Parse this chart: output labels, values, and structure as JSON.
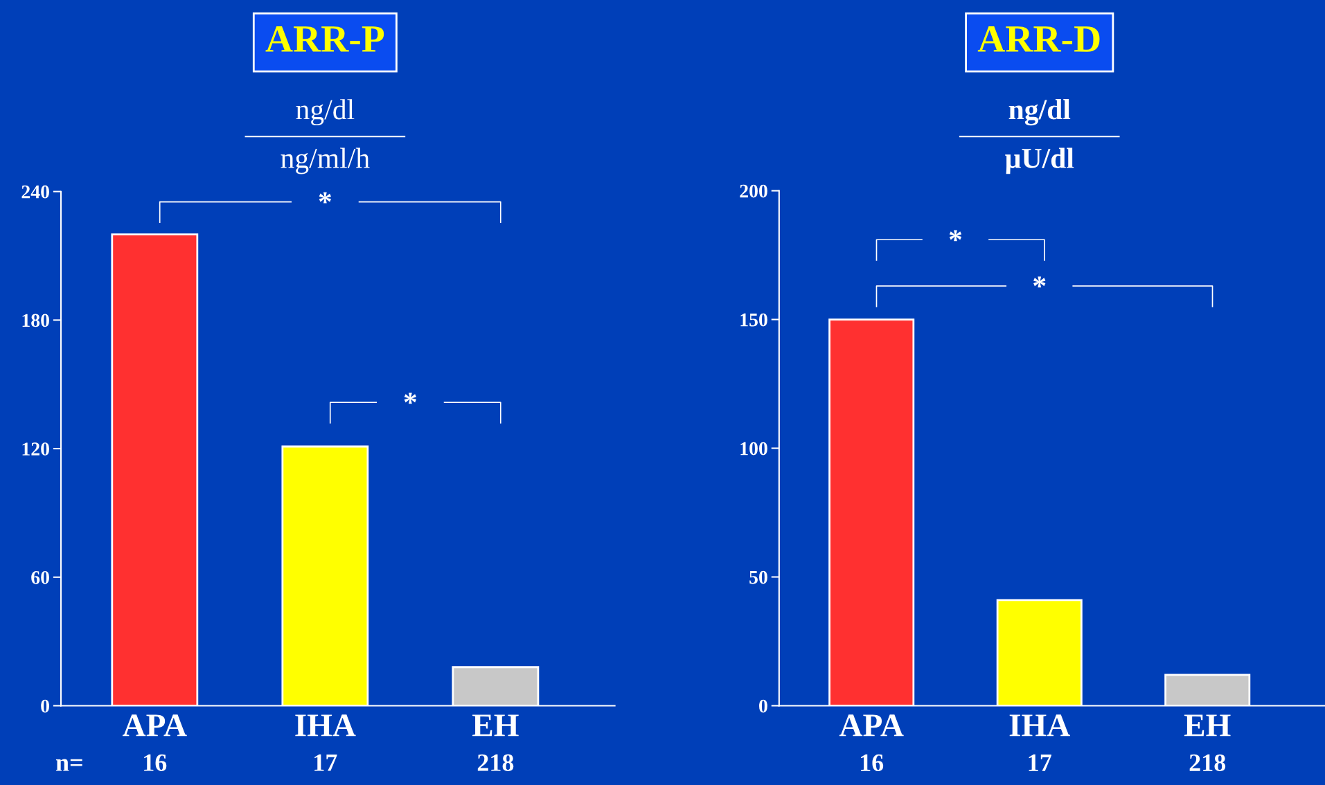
{
  "chart_data": [
    {
      "type": "bar",
      "title": "ARR-P",
      "subtitle": "ng/dl\nng/ml/h",
      "categories": [
        "APA",
        "IHA",
        "EH"
      ],
      "values": [
        220,
        121,
        18
      ],
      "colors": [
        "#ff3030",
        "#ffff00",
        "#c8c8c8"
      ],
      "ylim": [
        0,
        240
      ],
      "yticks": [
        0,
        60,
        120,
        180,
        240
      ],
      "grid": false,
      "annotations": [
        "*",
        "*",
        "n=",
        "16",
        "17",
        "218"
      ]
    },
    {
      "type": "bar",
      "title": "ARR-D",
      "subtitle": "ng/dl\nµU/dl",
      "categories": [
        "APA",
        "IHA",
        "EH"
      ],
      "values": [
        150,
        41,
        12
      ],
      "colors": [
        "#ff3030",
        "#ffff00",
        "#c8c8c8"
      ],
      "ylim": [
        0,
        200
      ],
      "yticks": [
        0,
        50,
        100,
        150,
        200
      ],
      "grid": false,
      "annotations": [
        "*",
        "*",
        "16",
        "17",
        "218"
      ]
    }
  ]
}
